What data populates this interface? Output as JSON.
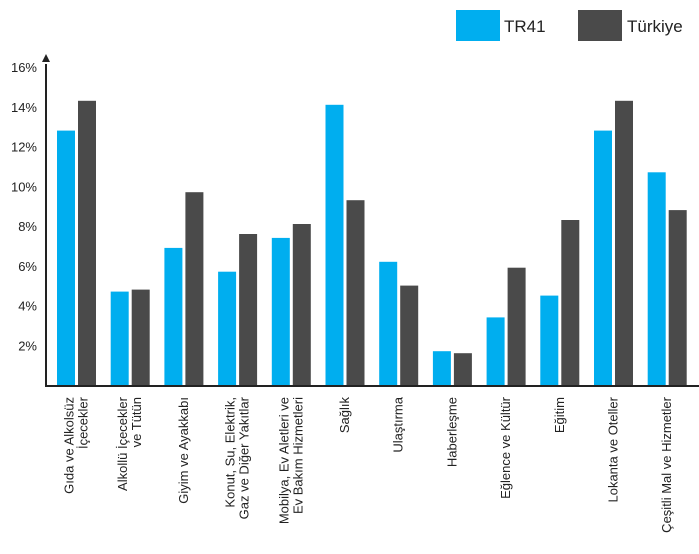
{
  "chart_data": {
    "type": "bar",
    "title": "",
    "xlabel": "",
    "ylabel": "",
    "ylim": [
      0,
      16
    ],
    "yticks": [
      "2%",
      "4%",
      "6%",
      "8%",
      "10%",
      "12%",
      "14%",
      "16%"
    ],
    "grid": false,
    "legend_position": "top-right",
    "categories": [
      [
        "Gıda ve Alkolsüz",
        "İçecekler"
      ],
      [
        "Alkollü İçecekler",
        "ve Tütün"
      ],
      [
        "Giyim ve Ayakkabı"
      ],
      [
        "Konut, Su, Elektrik,",
        "Gaz ve Diğer Yakıtlar"
      ],
      [
        "Mobilya, Ev Aletleri ve",
        "Ev Bakım Hizmetleri"
      ],
      [
        "Sağlık"
      ],
      [
        "Ulaştırma"
      ],
      [
        "Haberleşme"
      ],
      [
        "Eğlence ve Kültür"
      ],
      [
        "Eğitim"
      ],
      [
        "Lokanta ve Oteller"
      ],
      [
        "Çeşitli Mal ve Hizmetler"
      ]
    ],
    "series": [
      {
        "name": "TR41",
        "color": "#00AEEF",
        "values": [
          12.8,
          4.7,
          6.9,
          5.7,
          7.4,
          14.1,
          6.2,
          1.7,
          3.4,
          4.5,
          12.8,
          10.7
        ]
      },
      {
        "name": "Türkiye",
        "color": "#4A4A4A",
        "values": [
          14.3,
          4.8,
          9.7,
          7.6,
          8.1,
          9.3,
          5.0,
          1.6,
          5.9,
          8.3,
          14.3,
          8.8
        ]
      }
    ]
  }
}
